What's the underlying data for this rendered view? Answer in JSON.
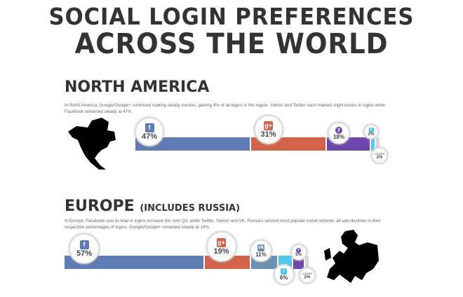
{
  "title": {
    "line1": "SOCIAL LOGIN PREFERENCES",
    "line2": "ACROSS THE WORLD"
  },
  "colors": {
    "facebook": "#5e7bb3",
    "google": "#d2634a",
    "yahoo": "#6d47ad",
    "twitter": "#4fc8f0",
    "vk": "#6d8fb0",
    "other": "#d8d8d8"
  },
  "north_america": {
    "heading": "NORTH AMERICA",
    "description": "In North America, Google/Google+ continued making steady traction, gaining 4% of all logins in the region. Yahoo! and Twitter each marked slight losses in logins while Facebook remained steady at 47%."
  },
  "europe": {
    "heading": "EUROPE",
    "subheading": "(INCLUDES RUSSIA)",
    "description": "In Europe, Facebook saw its lead in logins increase 5% over Q3, while Twitter, Yahoo! and VK, Russia's second most popular social network, all saw declines in their respective percentages of logins. Google/Google+ remained steady at 19%."
  },
  "chart_data": [
    {
      "type": "bar",
      "stacked": true,
      "orientation": "horizontal",
      "region": "North America",
      "categories": [
        "Facebook",
        "Google/Google+",
        "Yahoo!",
        "Twitter",
        "Other"
      ],
      "icons": [
        "facebook-icon",
        "google-plus-icon",
        "yahoo-icon",
        "twitter-icon",
        ""
      ],
      "values": [
        47,
        31,
        18,
        2,
        2
      ],
      "labels": [
        "47%",
        "31%",
        "18%",
        "2%",
        "2%"
      ],
      "other_label": "OTHER"
    },
    {
      "type": "bar",
      "stacked": true,
      "orientation": "horizontal",
      "region": "Europe",
      "categories": [
        "Facebook",
        "Google/Google+",
        "VK",
        "Twitter",
        "Yahoo!",
        "Other"
      ],
      "icons": [
        "facebook-icon",
        "google-plus-icon",
        "vk-icon",
        "twitter-icon",
        "yahoo-icon",
        ""
      ],
      "values": [
        57,
        19,
        11,
        6,
        5,
        2
      ],
      "labels": [
        "57%",
        "19%",
        "11%",
        "6%",
        "5%",
        "2%"
      ],
      "other_label": "OTHER"
    }
  ]
}
